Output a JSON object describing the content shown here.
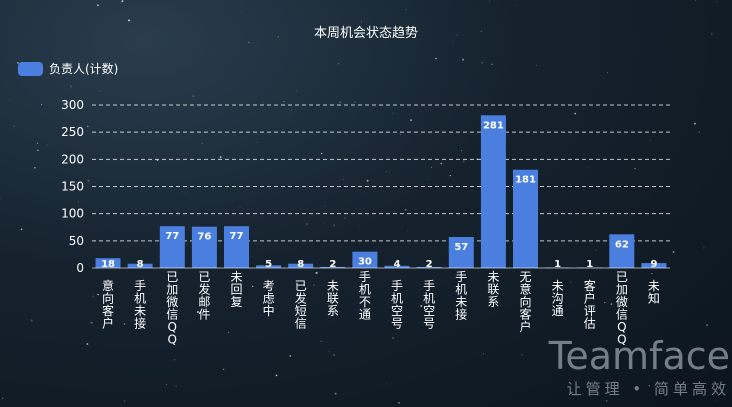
{
  "chart_data": {
    "type": "bar",
    "title": "本周机会状态趋势",
    "legend": {
      "position": "top-left",
      "entries": [
        "负责人(计数)"
      ]
    },
    "categories": [
      "意向客户",
      "手机未接",
      "已加微信QQ",
      "已发邮件",
      "未回复",
      "考虑中",
      "已发短信",
      "未联系",
      "手机不通",
      "手机空号",
      "手机空号",
      "手机未接",
      "未联系",
      "无意向客户",
      "未沟通",
      "客户评估",
      "已加微信QQ",
      "未知"
    ],
    "series": [
      {
        "name": "负责人(计数)",
        "color": "#4a7fdf",
        "values": [
          18,
          8,
          77,
          76,
          77,
          5,
          8,
          2,
          30,
          4,
          2,
          57,
          281,
          181,
          1,
          1,
          62,
          9
        ]
      }
    ],
    "ylim": [
      0,
      300
    ],
    "yticks": [
      0,
      50,
      100,
      150,
      200,
      250,
      300
    ],
    "grid": "dashed-horizontal"
  },
  "watermark": {
    "brand": "Teamface",
    "slogan": "让管理 • 简单高效"
  }
}
